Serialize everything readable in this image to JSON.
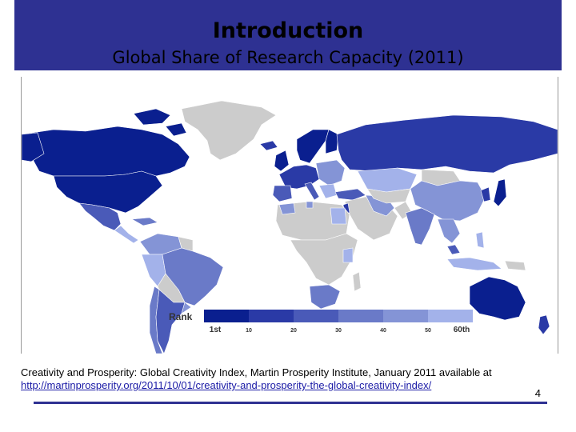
{
  "slide": {
    "title": "Introduction",
    "subtitle": "Global Share of Research Capacity (2011)",
    "page_number": "4",
    "header_color": "#2e3192"
  },
  "legend": {
    "label": "Rank",
    "ticks": [
      "1st",
      "10",
      "20",
      "30",
      "40",
      "50",
      "60th"
    ],
    "colors": [
      "#0a1f8f",
      "#2a3aa6",
      "#4a5ab8",
      "#6a7ac8",
      "#8494d6",
      "#a3b2ea"
    ],
    "no_data_color": "#cccccc"
  },
  "map": {
    "ocean_color": "#ffffff"
  },
  "caption": {
    "text": "Creativity and Prosperity: Global Creativity Index, Martin Prosperity Institute, January 2011 available at",
    "link": "http://martinprosperity.org/2011/10/01/creativity-and-prosperity-the-global-creativity-index/"
  }
}
